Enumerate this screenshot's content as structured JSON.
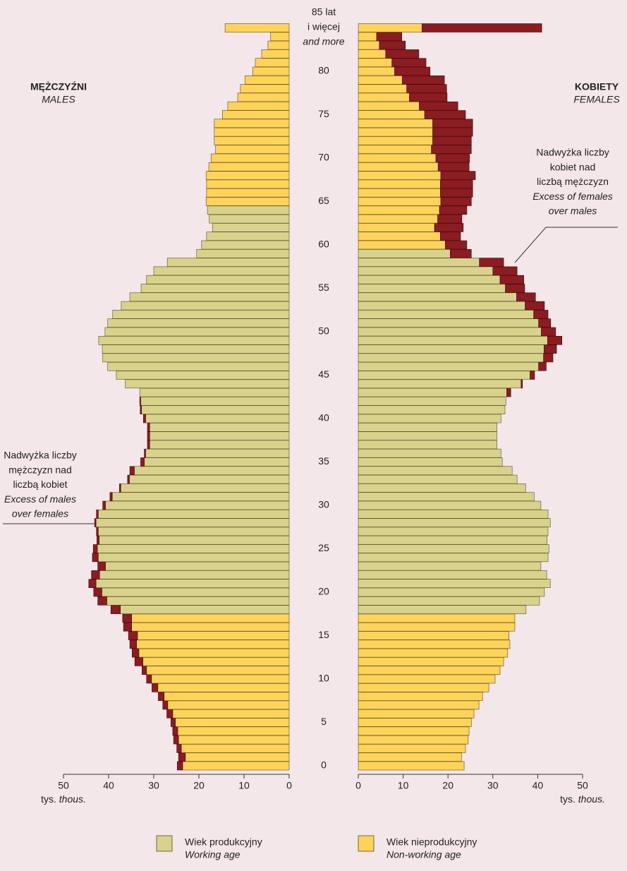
{
  "chart_data": {
    "type": "population-pyramid",
    "categories": [
      "0",
      null,
      null,
      null,
      null,
      "5",
      null,
      null,
      null,
      null,
      "10",
      null,
      null,
      null,
      null,
      "15",
      null,
      null,
      null,
      null,
      "20",
      null,
      null,
      null,
      null,
      "25",
      null,
      null,
      null,
      null,
      "30",
      null,
      null,
      null,
      null,
      "35",
      null,
      null,
      null,
      null,
      "40",
      null,
      null,
      null,
      null,
      "45",
      null,
      null,
      null,
      null,
      "50",
      null,
      null,
      null,
      null,
      "55",
      null,
      null,
      null,
      null,
      "60",
      null,
      null,
      null,
      null,
      "65",
      null,
      null,
      null,
      null,
      "70",
      null,
      null,
      null,
      null,
      "75",
      null,
      null,
      null,
      null,
      "80",
      null,
      null,
      null,
      null,
      "85 lat"
    ],
    "oldest_extra": [
      "i więcej",
      "and more"
    ],
    "xlim": [
      0,
      50
    ],
    "xticks": [
      0,
      10,
      20,
      30,
      40,
      50
    ],
    "unit": "tys.",
    "unit_en": "thous.",
    "males": {
      "label": "MĘŻCZYŹNI",
      "label_en": "MALES",
      "series": [
        {
          "name": "Wiek produkcyjny",
          "name_en": "Working age",
          "color": "#d8d28c",
          "values": [
            null,
            null,
            null,
            null,
            null,
            null,
            null,
            null,
            null,
            null,
            null,
            null,
            null,
            null,
            null,
            null,
            null,
            null,
            37.4,
            40.4,
            41.5,
            42.8,
            42.0,
            40.7,
            42.3,
            42.5,
            42.1,
            42.3,
            42.8,
            42.3,
            40.7,
            39.2,
            37.3,
            35.4,
            34.3,
            32.1,
            31.8,
            30.9,
            30.9,
            30.9,
            31.8,
            32.7,
            32.9,
            33.1,
            36.3,
            38.3,
            40.2,
            41.3,
            41.4,
            42.2,
            40.8,
            40.2,
            39.1,
            37.2,
            35.3,
            32.8,
            31.6,
            30.0,
            27.0,
            20.5,
            19.4,
            18.3,
            17.0,
            17.7,
            18.1,
            null,
            null,
            null,
            null,
            null,
            null,
            null,
            null,
            null,
            null,
            null,
            null,
            null,
            null,
            null,
            null,
            null,
            null,
            null,
            null,
            null
          ]
        },
        {
          "name": "Wiek nieprodukcyjny",
          "name_en": "Non-working age",
          "color": "#fdd35a",
          "values": [
            23.6,
            23.0,
            23.9,
            24.5,
            24.7,
            25.2,
            25.8,
            26.9,
            27.7,
            29.1,
            30.5,
            31.6,
            32.4,
            33.3,
            33.8,
            33.6,
            34.9,
            34.9,
            null,
            null,
            null,
            null,
            null,
            null,
            null,
            null,
            null,
            null,
            null,
            null,
            null,
            null,
            null,
            null,
            null,
            null,
            null,
            null,
            null,
            null,
            null,
            null,
            null,
            null,
            null,
            null,
            null,
            null,
            null,
            null,
            null,
            null,
            null,
            null,
            null,
            null,
            null,
            null,
            null,
            null,
            null,
            null,
            null,
            null,
            null,
            18.4,
            18.3,
            18.3,
            18.4,
            17.8,
            17.3,
            16.3,
            16.6,
            16.6,
            16.6,
            14.8,
            13.6,
            11.4,
            10.8,
            9.8,
            8.1,
            7.5,
            6.1,
            4.7,
            4.1,
            14.2
          ]
        }
      ],
      "excess": {
        "color": "#8b1c22",
        "values": [
          1.2,
          1.5,
          1.0,
          1.1,
          1.1,
          1.0,
          1.3,
          1.1,
          1.3,
          1.3,
          1.1,
          1.0,
          1.8,
          1.5,
          1.5,
          2.0,
          1.8,
          2.0,
          2.1,
          2.0,
          1.8,
          1.6,
          1.8,
          1.7,
          1.3,
          0.9,
          0.5,
          0.4,
          0.3,
          0.4,
          0.6,
          0.5,
          0.3,
          0.4,
          1.0,
          0.8,
          0.3,
          0.5,
          0.5,
          0.5,
          0.5,
          0.3,
          0.2,
          null,
          null,
          null,
          null,
          null,
          null,
          null,
          null,
          null,
          null,
          null,
          null,
          null,
          null,
          null,
          null,
          null,
          null,
          null,
          null,
          null,
          null,
          null,
          null,
          null,
          null,
          null,
          null,
          null,
          null,
          null,
          null,
          null,
          null,
          null,
          null,
          null,
          null,
          null,
          null,
          null,
          null,
          null,
          null
        ]
      },
      "annotation": [
        "Nadwyżka liczby",
        "mężczyzn nad",
        "liczbą kobiet"
      ],
      "annotation_en": [
        "Excess of males",
        "over females"
      ]
    },
    "females": {
      "label": "KOBIETY",
      "label_en": "FEMALES",
      "series": [
        {
          "color": "#d8d28c",
          "values": [
            null,
            null,
            null,
            null,
            null,
            null,
            null,
            null,
            null,
            null,
            null,
            null,
            null,
            null,
            null,
            null,
            null,
            null,
            37.4,
            40.4,
            41.5,
            42.8,
            42.0,
            40.7,
            42.3,
            42.5,
            42.1,
            42.3,
            42.8,
            42.3,
            40.7,
            39.2,
            37.3,
            35.4,
            34.3,
            32.1,
            31.8,
            30.9,
            30.9,
            30.9,
            31.8,
            32.7,
            32.9,
            33.1,
            36.3,
            38.3,
            40.2,
            41.3,
            41.4,
            42.2,
            40.8,
            40.2,
            39.1,
            37.2,
            35.3,
            32.8,
            31.6,
            30.0,
            27.0,
            20.5,
            null,
            null,
            null,
            null,
            null,
            null,
            null,
            null,
            null,
            null,
            null,
            null,
            null,
            null,
            null,
            null,
            null,
            null,
            null,
            null,
            null,
            null,
            null,
            null,
            null,
            null
          ]
        },
        {
          "color": "#fdd35a",
          "values": [
            23.6,
            23.0,
            23.9,
            24.5,
            24.7,
            25.2,
            25.8,
            26.9,
            27.7,
            29.1,
            30.5,
            31.6,
            32.4,
            33.3,
            33.8,
            33.6,
            34.9,
            34.9,
            null,
            null,
            null,
            null,
            null,
            null,
            null,
            null,
            null,
            null,
            null,
            null,
            null,
            null,
            null,
            null,
            null,
            null,
            null,
            null,
            null,
            null,
            null,
            null,
            null,
            null,
            null,
            null,
            null,
            null,
            null,
            null,
            null,
            null,
            null,
            null,
            null,
            null,
            null,
            null,
            null,
            null,
            19.4,
            18.3,
            17.0,
            17.7,
            18.1,
            18.4,
            18.3,
            18.3,
            18.4,
            17.8,
            17.3,
            16.3,
            16.6,
            16.6,
            16.6,
            14.8,
            13.6,
            11.4,
            10.8,
            9.8,
            8.1,
            7.5,
            6.1,
            4.7,
            4.1,
            14.2
          ]
        }
      ],
      "excess": {
        "color": "#8b1c22",
        "values": [
          null,
          null,
          null,
          null,
          null,
          null,
          null,
          null,
          null,
          null,
          null,
          null,
          null,
          null,
          null,
          null,
          null,
          null,
          null,
          null,
          null,
          null,
          null,
          null,
          null,
          null,
          null,
          null,
          null,
          null,
          null,
          null,
          null,
          null,
          null,
          null,
          null,
          null,
          null,
          null,
          null,
          null,
          null,
          0.9,
          0.3,
          1.0,
          1.7,
          2.1,
          2.8,
          3.2,
          3.2,
          2.7,
          3.2,
          4.3,
          4.2,
          4.3,
          5.3,
          5.4,
          5.4,
          4.7,
          4.8,
          4.5,
          6.4,
          5.4,
          6.1,
          6.8,
          7.2,
          7.2,
          7.7,
          6.9,
          7.5,
          8.9,
          8.6,
          8.9,
          8.9,
          9.1,
          8.6,
          8.4,
          8.9,
          9.4,
          7.9,
          7.6,
          7.4,
          5.8,
          5.6,
          26.7
        ]
      },
      "annotation": [
        "Nadwyżka liczby",
        "kobiet nad",
        "liczbą mężczyzn"
      ],
      "annotation_en": [
        "Excess of females",
        "over males"
      ]
    }
  }
}
